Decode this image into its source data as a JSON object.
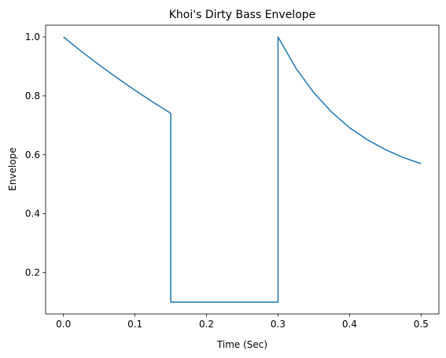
{
  "chart_data": {
    "type": "line",
    "title": "Khoi's Dirty Bass Envelope",
    "xlabel": "Time (Sec)",
    "ylabel": "Envelope",
    "xlim": [
      -0.025,
      0.525
    ],
    "ylim": [
      0.06,
      1.04
    ],
    "xticks": [
      0.0,
      0.1,
      0.2,
      0.3,
      0.4,
      0.5
    ],
    "xtick_labels": [
      "0.0",
      "0.1",
      "0.2",
      "0.3",
      "0.4",
      "0.5"
    ],
    "yticks": [
      0.2,
      0.4,
      0.6,
      0.8,
      1.0
    ],
    "ytick_labels": [
      "0.2",
      "0.4",
      "0.6",
      "0.8",
      "1.0"
    ],
    "grid": false,
    "series": [
      {
        "color": "#1f77b4",
        "x": [
          0.0,
          0.025,
          0.05,
          0.075,
          0.1,
          0.125,
          0.15,
          0.15,
          0.3,
          0.3,
          0.325,
          0.35,
          0.375,
          0.4,
          0.425,
          0.45,
          0.475,
          0.5
        ],
        "y": [
          1.0,
          0.951,
          0.905,
          0.861,
          0.819,
          0.779,
          0.741,
          0.1,
          0.1,
          1.0,
          0.894,
          0.811,
          0.745,
          0.692,
          0.651,
          0.618,
          0.591,
          0.57
        ]
      }
    ]
  }
}
